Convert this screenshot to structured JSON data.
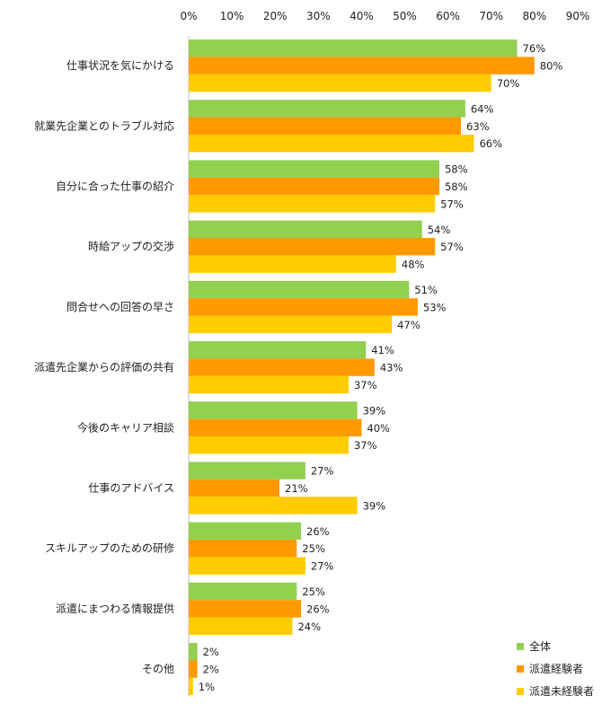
{
  "chart_data": {
    "type": "bar",
    "orientation": "horizontal",
    "xlim": [
      0,
      90
    ],
    "ticks": [
      0,
      10,
      20,
      30,
      40,
      50,
      60,
      70,
      80,
      90
    ],
    "tick_labels": [
      "0%",
      "10%",
      "20%",
      "30%",
      "40%",
      "50%",
      "60%",
      "70%",
      "80%",
      "90%"
    ],
    "unit": "%",
    "grid": false,
    "legend_position": "bottom-right",
    "categories": [
      "仕事状況を気にかける",
      "就業先企業とのトラブル対応",
      "自分に合った仕事の紹介",
      "時給アップの交渉",
      "問合せへの回答の早さ",
      "派遣先企業からの評価の共有",
      "今後のキャリア相談",
      "仕事のアドバイス",
      "スキルアップのための研修",
      "派遣にまつわる情報提供",
      "その他"
    ],
    "series": [
      {
        "name": "全体",
        "color": "#92d050",
        "values": [
          76,
          64,
          58,
          54,
          51,
          41,
          39,
          27,
          26,
          25,
          2
        ]
      },
      {
        "name": "派遣経験者",
        "color": "#ff9900",
        "values": [
          80,
          63,
          58,
          57,
          53,
          43,
          40,
          21,
          25,
          26,
          2
        ]
      },
      {
        "name": "派遣未経験者",
        "color": "#ffcc00",
        "values": [
          70,
          66,
          57,
          48,
          47,
          37,
          37,
          39,
          27,
          24,
          1
        ]
      }
    ]
  }
}
